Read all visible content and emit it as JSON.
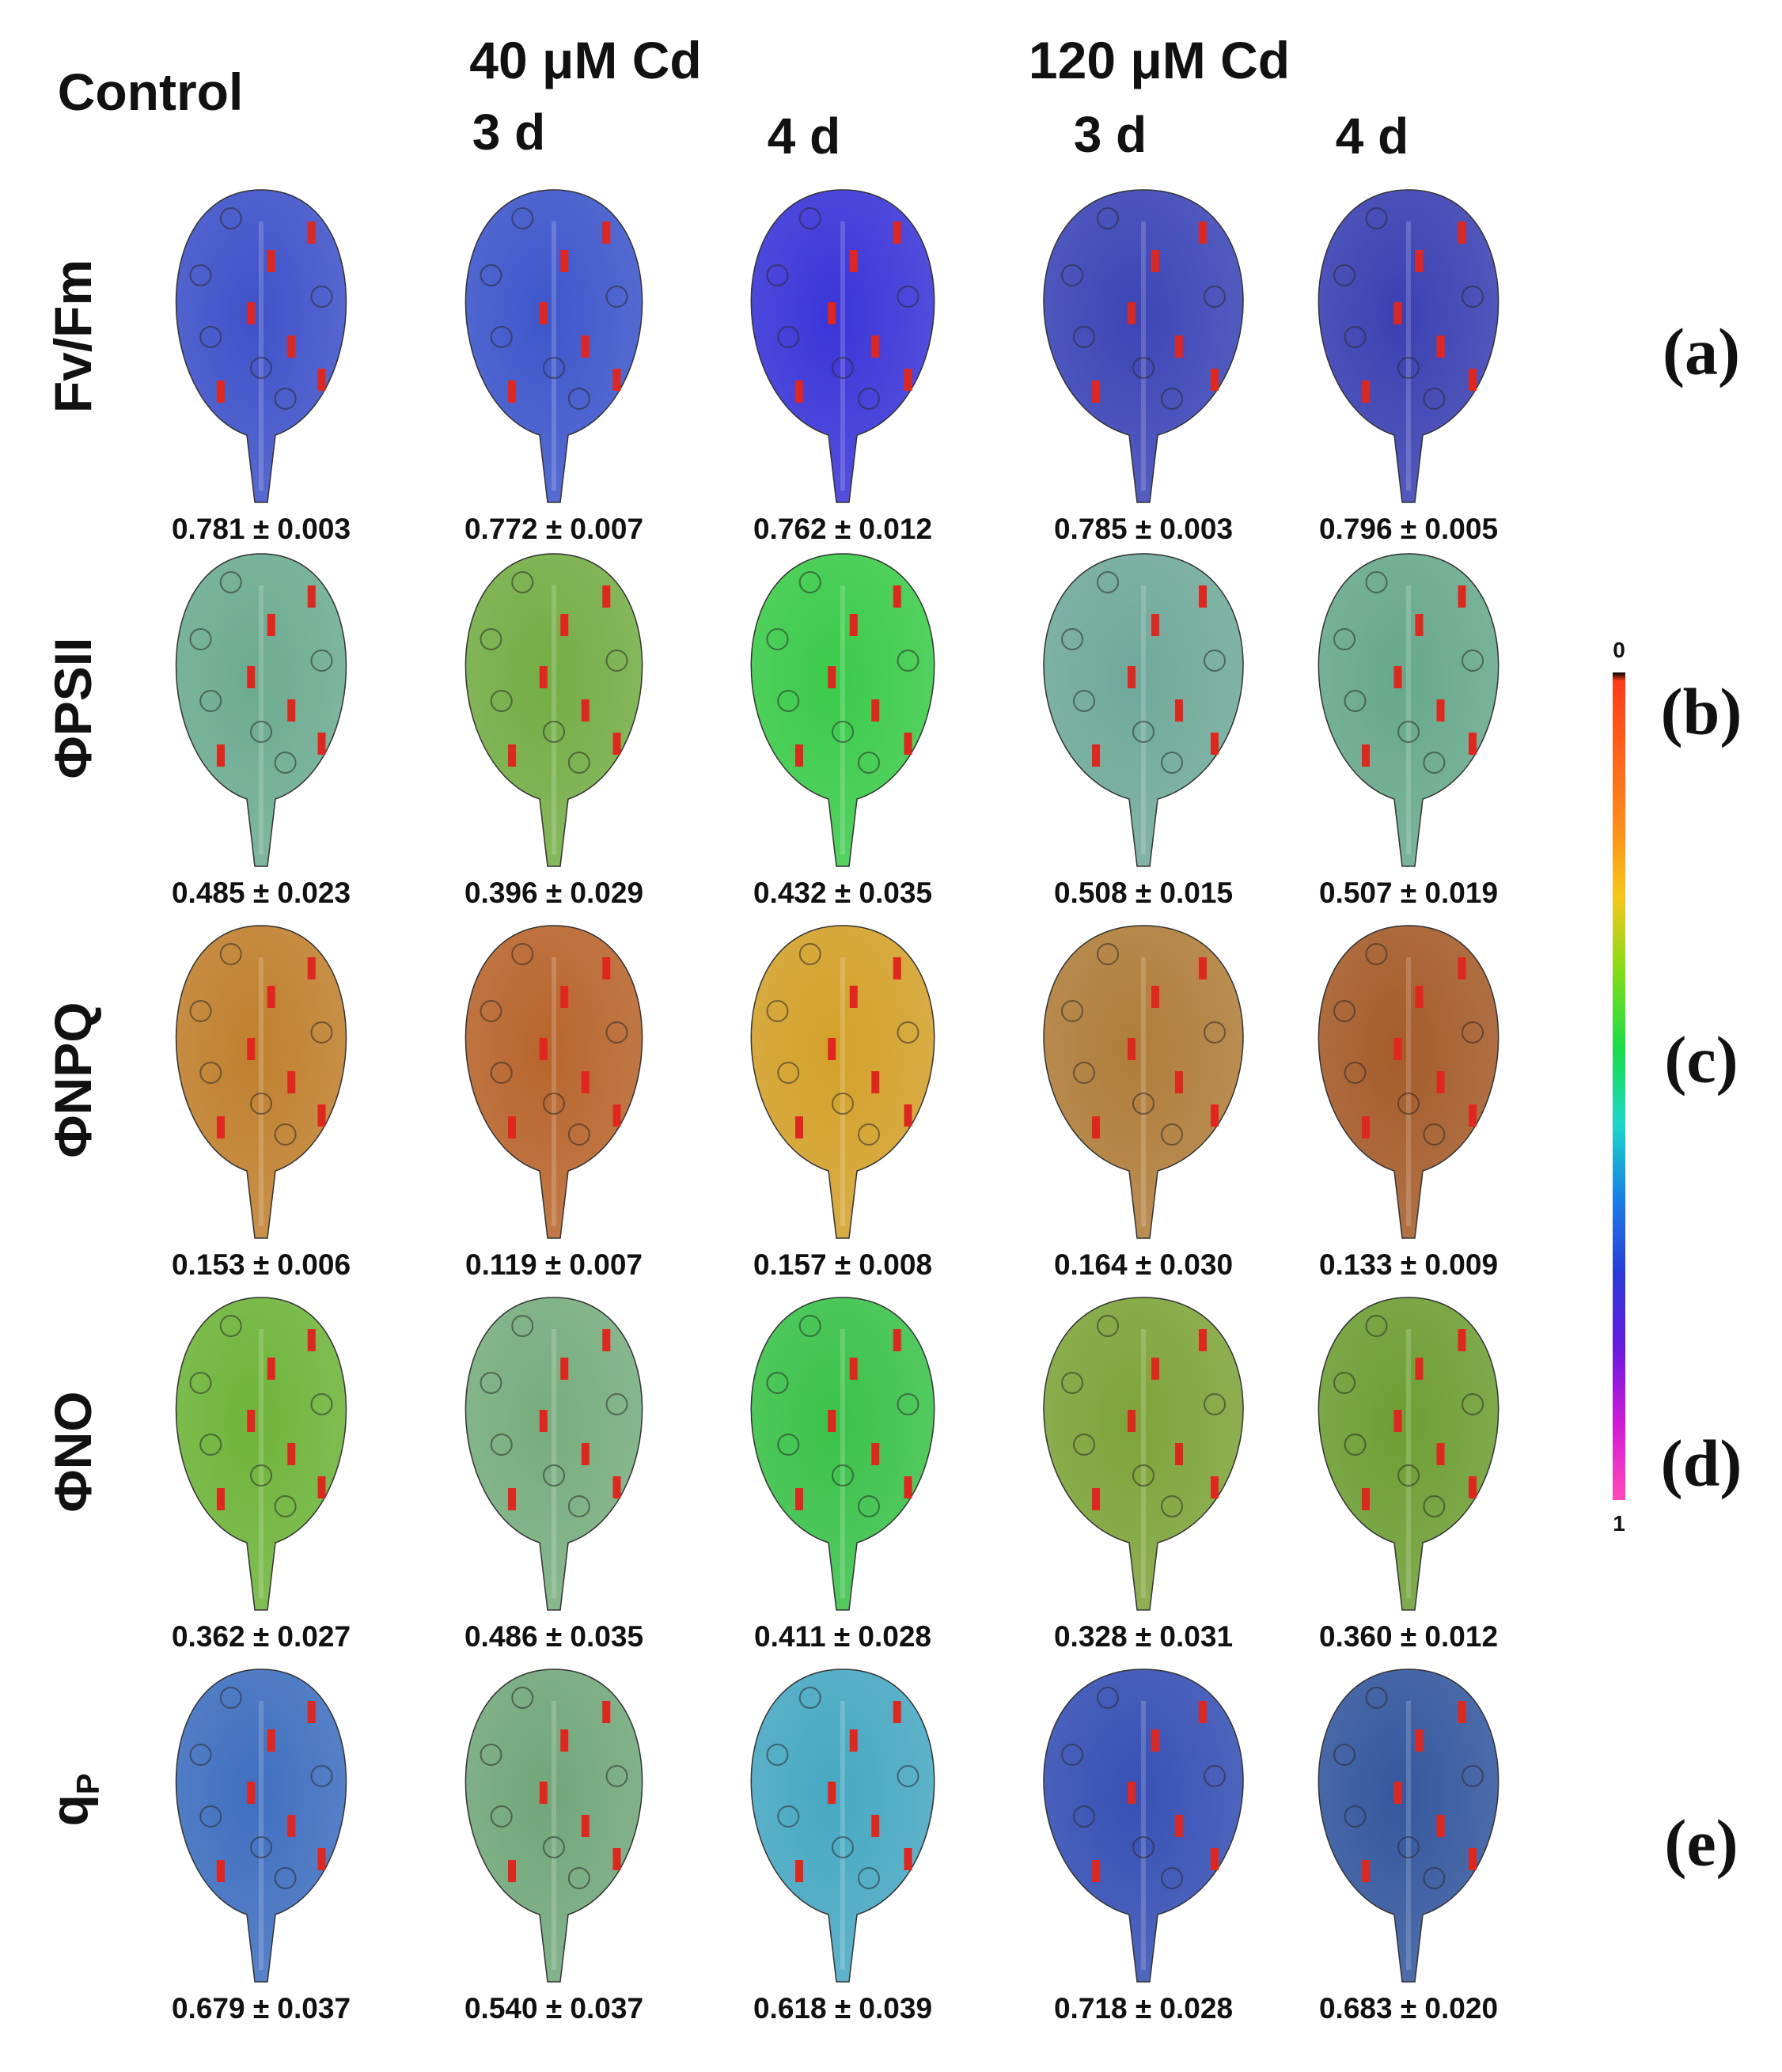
{
  "headers": {
    "control": "Control",
    "group_40": "40 μM Cd",
    "group_120": "120 μM Cd",
    "days": [
      "3 d",
      "4 d",
      "3 d",
      "4 d"
    ]
  },
  "rows": [
    {
      "label": "Fv/Fm",
      "panel": "(a)",
      "values": [
        "0.781 ± 0.003",
        "0.772 ± 0.007",
        "0.762 ± 0.012",
        "0.785 ± 0.003",
        "0.796 ± 0.005"
      ],
      "leaf_colors": [
        "#3f52c9",
        "#3d56cb",
        "#3a35d8",
        "#3b45b6",
        "#3a40b2"
      ]
    },
    {
      "label": "ΦPSII",
      "panel": "(b)",
      "values": [
        "0.485 ± 0.023",
        "0.396 ± 0.029",
        "0.432 ± 0.035",
        "0.508 ± 0.015",
        "0.507 ± 0.019"
      ],
      "leaf_colors": [
        "#6cab91",
        "#74ad45",
        "#3bcb4a",
        "#6fa99a",
        "#67a88c"
      ]
    },
    {
      "label": "ΦNPQ",
      "panel": "(c)",
      "values": [
        "0.153 ± 0.006",
        "0.119 ± 0.007",
        "0.157 ± 0.008",
        "0.164 ± 0.030",
        "0.133 ± 0.009"
      ],
      "leaf_colors": [
        "#c0802e",
        "#b8652c",
        "#d3a12a",
        "#b07d3a",
        "#a55c2a"
      ]
    },
    {
      "label": "ΦNO",
      "panel": "(d)",
      "values": [
        "0.362 ± 0.027",
        "0.486 ± 0.035",
        "0.411 ± 0.028",
        "0.328 ± 0.031",
        "0.360 ± 0.012"
      ],
      "leaf_colors": [
        "#6eb43a",
        "#77ad7e",
        "#3bc24a",
        "#7ea43a",
        "#6e9e34"
      ]
    },
    {
      "label": "qP",
      "panel": "(e)",
      "values": [
        "0.679 ± 0.037",
        "0.540 ± 0.037",
        "0.618 ± 0.039",
        "0.718 ± 0.028",
        "0.683 ± 0.020"
      ],
      "leaf_colors": [
        "#3f6fc0",
        "#72a77a",
        "#47a8c2",
        "#3650b4",
        "#34579e"
      ]
    }
  ],
  "colorbar": {
    "min_label": "0",
    "max_label": "1",
    "colors": [
      "#000000",
      "#ff3a1a",
      "#ff8a1a",
      "#f5c81a",
      "#7fdc1a",
      "#1adc4a",
      "#1ad8c8",
      "#1a7ee8",
      "#2a3ad8",
      "#6a1ae0",
      "#d21ad8",
      "#ff4ab8"
    ]
  }
}
